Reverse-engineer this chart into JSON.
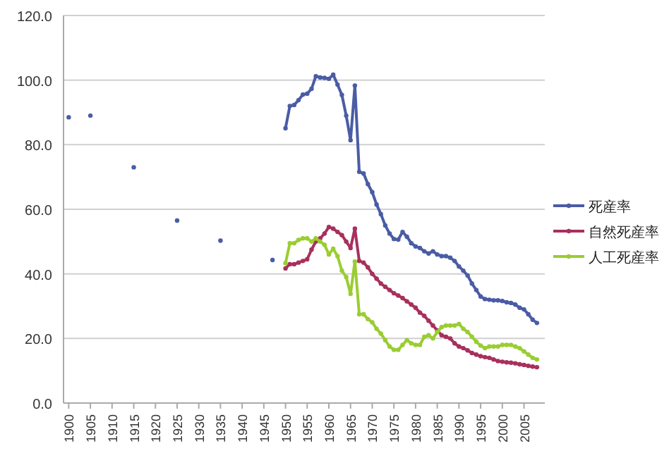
{
  "chart_data": {
    "type": "line",
    "x": [
      1950,
      1951,
      1952,
      1953,
      1954,
      1955,
      1956,
      1957,
      1958,
      1959,
      1960,
      1961,
      1962,
      1963,
      1964,
      1965,
      1966,
      1967,
      1968,
      1969,
      1970,
      1971,
      1972,
      1973,
      1974,
      1975,
      1976,
      1977,
      1978,
      1979,
      1980,
      1981,
      1982,
      1983,
      1984,
      1985,
      1986,
      1987,
      1988,
      1989,
      1990,
      1991,
      1992,
      1993,
      1994,
      1995,
      1996,
      1997,
      1998,
      1999,
      2000,
      2001,
      2002,
      2003,
      2004,
      2005,
      2006,
      2007,
      2008
    ],
    "series": [
      {
        "name": "死産率",
        "color": "#4a5ca5",
        "x": [
          1950,
          1951,
          1952,
          1953,
          1954,
          1955,
          1956,
          1957,
          1958,
          1959,
          1960,
          1961,
          1962,
          1963,
          1964,
          1965,
          1966,
          1967,
          1968,
          1969,
          1970,
          1971,
          1972,
          1973,
          1974,
          1975,
          1976,
          1977,
          1978,
          1979,
          1980,
          1981,
          1982,
          1983,
          1984,
          1985,
          1986,
          1987,
          1988,
          1989,
          1990,
          1991,
          1992,
          1993,
          1994,
          1995,
          1996,
          1997,
          1998,
          1999,
          2000,
          2001,
          2002,
          2003,
          2004,
          2005,
          2006,
          2007,
          2008
        ],
        "values": [
          85.1,
          92,
          92.3,
          93.8,
          95.5,
          95.8,
          97.3,
          101.2,
          100.8,
          100.7,
          100.4,
          101.7,
          98.6,
          95.4,
          89,
          81.4,
          98.3,
          71.6,
          71.1,
          67.8,
          65.3,
          61.5,
          58.5,
          55,
          52.5,
          50.8,
          50.6,
          53,
          51.5,
          49.5,
          48.5,
          48,
          47,
          46.3,
          47,
          46,
          45.5,
          45.5,
          45,
          44,
          42.3,
          41,
          39.5,
          37,
          35,
          33,
          32.2,
          32,
          31.8,
          31.8,
          31.6,
          31.2,
          31,
          30.5,
          29.5,
          29,
          27.5,
          25.8,
          24.8
        ]
      },
      {
        "type": "scatter",
        "color": "#4a5ca5",
        "x": [
          1900,
          1905,
          1915,
          1925,
          1935,
          1947
        ],
        "values": [
          88.5,
          89,
          73,
          56.5,
          50.3,
          44.3
        ]
      },
      {
        "name": "自然死産率",
        "color": "#a8305c",
        "values": [
          41.7,
          43,
          43,
          43.5,
          44,
          44.5,
          47.5,
          50,
          51,
          52.5,
          54.5,
          54,
          53,
          52,
          50,
          48,
          54,
          44,
          43.5,
          42,
          40,
          38.5,
          37,
          36,
          35,
          34,
          33.3,
          32.5,
          31.5,
          30.5,
          29.5,
          28,
          27,
          25.5,
          24,
          22.5,
          21,
          20.5,
          20,
          18.5,
          17.5,
          17,
          16.3,
          15.5,
          15,
          14.5,
          14.2,
          14,
          13.5,
          13,
          12.8,
          12.6,
          12.5,
          12.3,
          12,
          11.8,
          11.5,
          11.3,
          11.1
        ]
      },
      {
        "name": "人工死産率",
        "color": "#9acd32",
        "values": [
          43.3,
          49.5,
          49.5,
          50.5,
          51,
          51,
          50,
          51,
          50,
          49,
          46,
          47.8,
          45.5,
          41,
          39,
          33.8,
          43.8,
          27.5,
          27.5,
          26,
          25,
          23,
          21.5,
          19.5,
          17.5,
          16.5,
          16.5,
          18,
          19.5,
          18.5,
          18,
          18,
          20.5,
          21,
          20,
          22,
          23.5,
          24,
          24,
          24,
          24.5,
          23,
          22,
          20.5,
          19,
          17.8,
          17,
          17.5,
          17.5,
          17.5,
          18,
          18,
          18,
          17.5,
          17,
          16,
          15,
          14,
          13.5
        ]
      }
    ],
    "xlim": [
      1898.8,
      2009.8
    ],
    "xticks": [
      1900,
      1905,
      1910,
      1915,
      1920,
      1925,
      1930,
      1935,
      1940,
      1945,
      1950,
      1955,
      1960,
      1965,
      1970,
      1975,
      1980,
      1985,
      1990,
      1995,
      2000,
      2005
    ],
    "ylim": [
      0,
      120
    ],
    "yticks": [
      {
        "value": 0,
        "label": "0.0"
      },
      {
        "value": 20,
        "label": "20.0"
      },
      {
        "value": 40,
        "label": "40.0"
      },
      {
        "value": 60,
        "label": "60.0"
      },
      {
        "value": 80,
        "label": "80.0"
      },
      {
        "value": 100,
        "label": "100.0"
      },
      {
        "value": 120,
        "label": "120.0"
      }
    ],
    "grid": "y",
    "legend": "right",
    "marker": "circle",
    "line_style": "solid"
  }
}
